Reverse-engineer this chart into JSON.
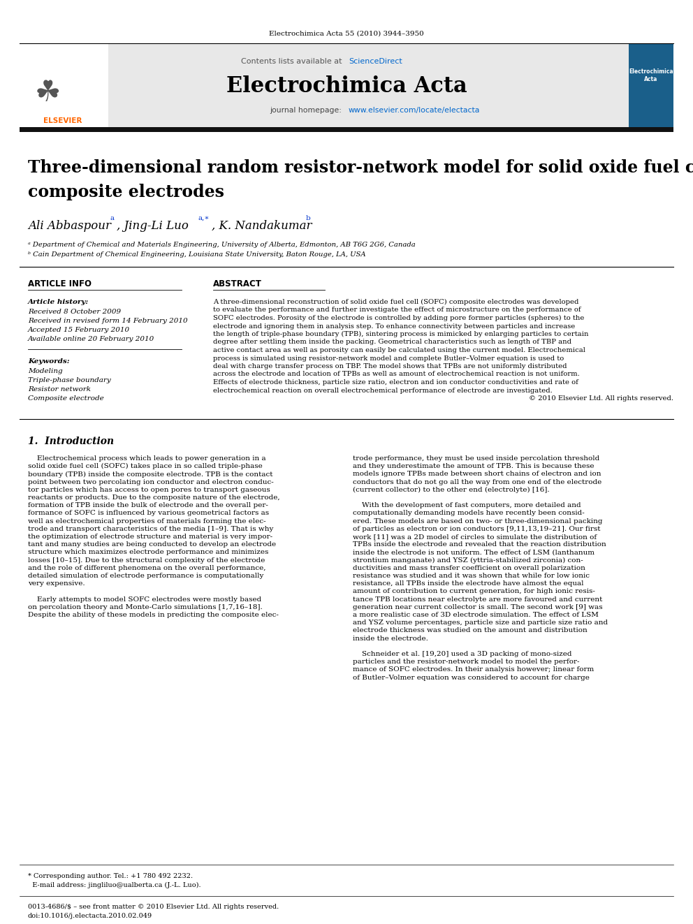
{
  "page_width": 9.92,
  "page_height": 13.23,
  "dpi": 100,
  "background_color": "#ffffff",
  "header_journal_ref": "Electrochimica Acta 55 (2010) 3944–3950",
  "journal_name": "Electrochimica Acta",
  "sciencedirect_color": "#0066cc",
  "homepage_url_color": "#0066cc",
  "section_article_info": "ARTICLE INFO",
  "section_abstract": "ABSTRACT",
  "article_history_label": "Article history:",
  "received_1": "Received 8 October 2009",
  "received_2": "Received in revised form 14 February 2010",
  "accepted": "Accepted 15 February 2010",
  "available": "Available online 20 February 2010",
  "keywords_label": "Keywords:",
  "keyword1": "Modeling",
  "keyword2": "Triple-phase boundary",
  "keyword3": "Resistor network",
  "keyword4": "Composite electrode",
  "affil_a": "ᵃ Department of Chemical and Materials Engineering, University of Alberta, Edmonton, AB T6G 2G6, Canada",
  "affil_b": "ᵇ Cain Department of Chemical Engineering, Louisiana State University, Baton Rouge, LA, USA",
  "intro_heading": "1.  Introduction",
  "text_color": "#000000",
  "link_color": "#0033cc",
  "abstract_lines": [
    "A three-dimensional reconstruction of solid oxide fuel cell (SOFC) composite electrodes was developed",
    "to evaluate the performance and further investigate the effect of microstructure on the performance of",
    "SOFC electrodes. Porosity of the electrode is controlled by adding pore former particles (spheres) to the",
    "electrode and ignoring them in analysis step. To enhance connectivity between particles and increase",
    "the length of triple-phase boundary (TPB), sintering process is mimicked by enlarging particles to certain",
    "degree after settling them inside the packing. Geometrical characteristics such as length of TBP and",
    "active contact area as well as porosity can easily be calculated using the current model. Electrochemical",
    "process is simulated using resistor-network model and complete Butler–Volmer equation is used to",
    "deal with charge transfer process on TBP. The model shows that TPBs are not uniformly distributed",
    "across the electrode and location of TPBs as well as amount of electrochemical reaction is not uniform.",
    "Effects of electrode thickness, particle size ratio, electron and ion conductor conductivities and rate of",
    "electrochemical reaction on overall electrochemical performance of electrode are investigated."
  ],
  "copyright_line": "© 2010 Elsevier Ltd. All rights reserved.",
  "intro_col1_lines": [
    "    Electrochemical process which leads to power generation in a",
    "solid oxide fuel cell (SOFC) takes place in so called triple-phase",
    "boundary (TPB) inside the composite electrode. TPB is the contact",
    "point between two percolating ion conductor and electron conduc-",
    "tor particles which has access to open pores to transport gaseous",
    "reactants or products. Due to the composite nature of the electrode,",
    "formation of TPB inside the bulk of electrode and the overall per-",
    "formance of SOFC is influenced by various geometrical factors as",
    "well as electrochemical properties of materials forming the elec-",
    "trode and transport characteristics of the media [1–9]. That is why",
    "the optimization of electrode structure and material is very impor-",
    "tant and many studies are being conducted to develop an electrode",
    "structure which maximizes electrode performance and minimizes",
    "losses [10–15]. Due to the structural complexity of the electrode",
    "and the role of different phenomena on the overall performance,",
    "detailed simulation of electrode performance is computationally",
    "very expensive.",
    "",
    "    Early attempts to model SOFC electrodes were mostly based",
    "on percolation theory and Monte-Carlo simulations [1,7,16–18].",
    "Despite the ability of these models in predicting the composite elec-"
  ],
  "intro_col2_lines": [
    "trode performance, they must be used inside percolation threshold",
    "and they underestimate the amount of TPB. This is because these",
    "models ignore TPBs made between short chains of electron and ion",
    "conductors that do not go all the way from one end of the electrode",
    "(current collector) to the other end (electrolyte) [16].",
    "",
    "    With the development of fast computers, more detailed and",
    "computationally demanding models have recently been consid-",
    "ered. These models are based on two- or three-dimensional packing",
    "of particles as electron or ion conductors [9,11,13,19–21]. Our first",
    "work [11] was a 2D model of circles to simulate the distribution of",
    "TPBs inside the electrode and revealed that the reaction distribution",
    "inside the electrode is not uniform. The effect of LSM (lanthanum",
    "strontium manganate) and YSZ (yttria-stabilized zirconia) con-",
    "ductivities and mass transfer coefficient on overall polarization",
    "resistance was studied and it was shown that while for low ionic",
    "resistance, all TPBs inside the electrode have almost the equal",
    "amount of contribution to current generation, for high ionic resis-",
    "tance TPB locations near electrolyte are more favoured and current",
    "generation near current collector is small. The second work [9] was",
    "a more realistic case of 3D electrode simulation. The effect of LSM",
    "and YSZ volume percentages, particle size and particle size ratio and",
    "electrode thickness was studied on the amount and distribution",
    "inside the electrode.",
    "",
    "    Schneider et al. [19,20] used a 3D packing of mono-sized",
    "particles and the resistor-network model to model the perfor-",
    "mance of SOFC electrodes. In their analysis however; linear form",
    "of Butler–Volmer equation was considered to account for charge"
  ],
  "footer_line1": "* Corresponding author. Tel.: +1 780 492 2232.",
  "footer_line2": "  E-mail address: jingliluo@ualberta.ca (J.-L. Luo).",
  "footer_issn1": "0013-4686/$ – see front matter © 2010 Elsevier Ltd. All rights reserved.",
  "footer_issn2": "doi:10.1016/j.electacta.2010.02.049"
}
